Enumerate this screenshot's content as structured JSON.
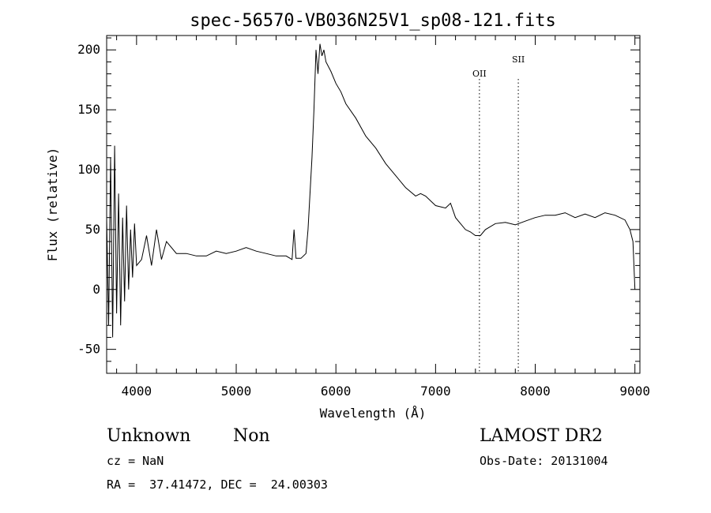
{
  "chart_data": {
    "type": "line",
    "title": "spec-56570-VB036N25V1_sp08-121.fits",
    "xlabel": "Wavelength (Å)",
    "ylabel": "Flux (relative)",
    "xlim": [
      3700,
      9050
    ],
    "ylim": [
      -70,
      212
    ],
    "x_ticks": [
      4000,
      5000,
      6000,
      7000,
      8000,
      9000
    ],
    "y_ticks": [
      -50,
      0,
      50,
      100,
      150,
      200
    ],
    "grid": false,
    "series": [
      {
        "x": [
          3700,
          3720,
          3740,
          3760,
          3780,
          3800,
          3820,
          3840,
          3860,
          3880,
          3900,
          3920,
          3940,
          3960,
          3980,
          4000,
          4050,
          4100,
          4150,
          4200,
          4250,
          4300,
          4400,
          4500,
          4600,
          4700,
          4800,
          4900,
          5000,
          5100,
          5200,
          5300,
          5400,
          5500,
          5560,
          5580,
          5600,
          5650,
          5700,
          5720,
          5740,
          5760,
          5780,
          5800,
          5820,
          5840,
          5860,
          5880,
          5900,
          5950,
          6000,
          6050,
          6100,
          6200,
          6300,
          6400,
          6500,
          6600,
          6700,
          6800,
          6850,
          6900,
          7000,
          7100,
          7150,
          7200,
          7250,
          7300,
          7350,
          7400,
          7450,
          7500,
          7600,
          7700,
          7800,
          7900,
          8000,
          8100,
          8200,
          8300,
          8400,
          8500,
          8600,
          8700,
          8800,
          8900,
          8950,
          8980,
          9000
        ],
        "y": [
          60,
          -30,
          110,
          -40,
          120,
          -20,
          80,
          -30,
          60,
          -10,
          70,
          0,
          50,
          10,
          55,
          20,
          25,
          45,
          20,
          50,
          25,
          40,
          30,
          30,
          28,
          28,
          32,
          30,
          32,
          35,
          32,
          30,
          28,
          28,
          25,
          50,
          26,
          26,
          30,
          50,
          80,
          110,
          150,
          200,
          180,
          205,
          195,
          200,
          190,
          182,
          172,
          165,
          155,
          143,
          128,
          118,
          105,
          95,
          85,
          78,
          80,
          78,
          70,
          68,
          72,
          60,
          55,
          50,
          48,
          45,
          45,
          50,
          55,
          56,
          54,
          57,
          60,
          62,
          62,
          64,
          60,
          63,
          60,
          64,
          62,
          58,
          50,
          40,
          0
        ]
      }
    ],
    "annotations": [
      {
        "label": "OII",
        "x": 7440
      },
      {
        "label": "SII",
        "x": 7830
      }
    ]
  },
  "info": {
    "class": "Unknown",
    "subclass": "Non",
    "survey": "LAMOST DR2",
    "cz": "cz = NaN",
    "obs_date": "Obs-Date: 20131004",
    "coords": "RA =  37.41472, DEC =  24.00303"
  }
}
